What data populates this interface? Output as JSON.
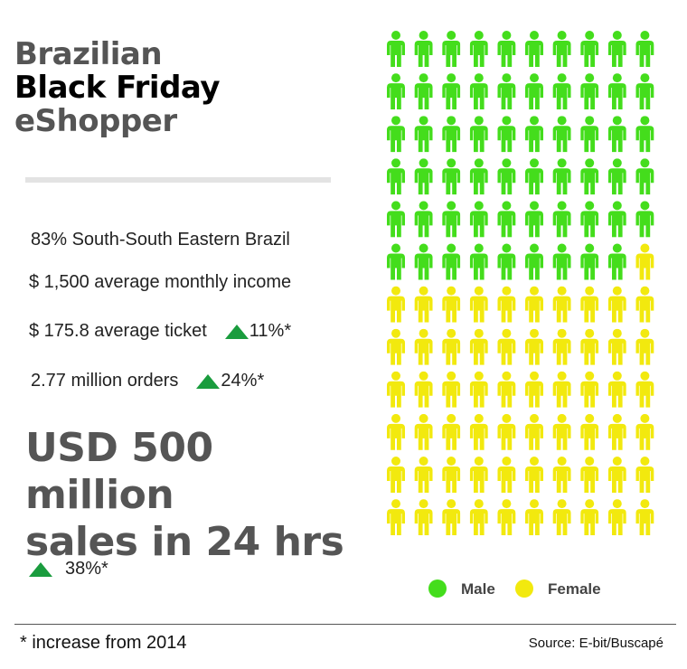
{
  "title": {
    "line1": "Brazilian",
    "line2": "Black Friday",
    "line3": "eShopper"
  },
  "stats": {
    "region": "83% South-South Eastern Brazil",
    "income": "$ 1,500 average monthly income",
    "ticket": "$ 175.8 average ticket",
    "ticket_change": "11%*",
    "orders": "2.77 million orders",
    "orders_change": "24%*"
  },
  "headline": {
    "line1": "USD 500",
    "line2": "million",
    "line3": "sales in 24 hrs",
    "change": "38%*"
  },
  "footnote": "* increase from 2014",
  "source": "Source: E-bit/Buscapé",
  "colors": {
    "male": "#44dd1c",
    "female": "#f2e90e",
    "increase": "#1a9c3e"
  },
  "chart_data": {
    "type": "pictogram",
    "columns": 10,
    "rows": 12,
    "total_icons": 120,
    "series": [
      {
        "name": "Male",
        "count": 59,
        "color": "#44dd1c"
      },
      {
        "name": "Female",
        "count": 61,
        "color": "#f2e90e"
      }
    ],
    "legend": [
      "Male",
      "Female"
    ],
    "legend_position": "bottom"
  }
}
